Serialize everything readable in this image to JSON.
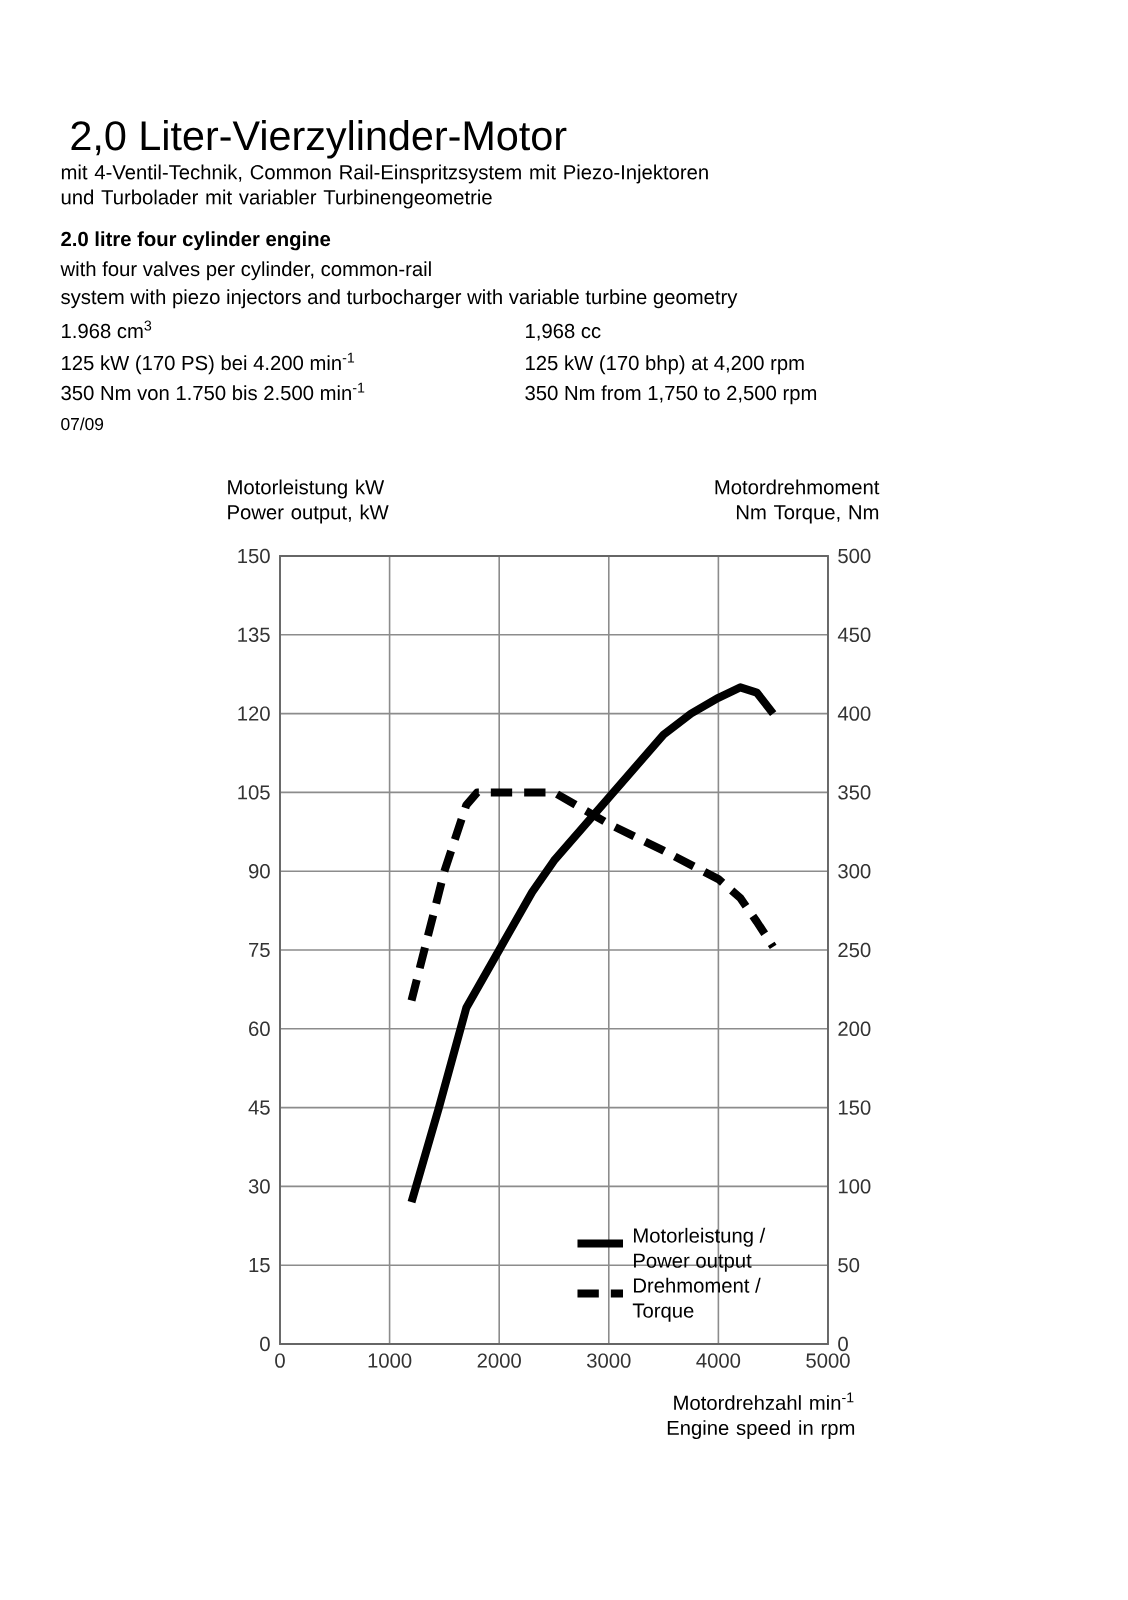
{
  "chart_data": {
    "type": "line",
    "title": "2,0 Liter-Vierzylinder-Motor",
    "subtitle": "mit 4-Ventil-Technik, Common Rail-Einspritzsystem mit Piezo-Injektoren und Turbolader mit variabler Turbinengeometrie",
    "annotations": [
      "2.0 litre four cylinder engine",
      "with four valves per cylinder, common-rail",
      "system with piezo injectors and turbocharger with variable turbine geometry",
      "1.968 cm$^{3}$",
      "125 kW (170 PS) bei 4.200 min$^{-1}$",
      "350 Nm von 1.750 bis 2.500 min$^{-1}$",
      "1,968 cc",
      "125 kW (170 bhp) at 4,200 rpm",
      "350 Nm from 1,750 to 2,500 rpm",
      "07/09"
    ],
    "xlabel": "Motordrehzahl min$^{-1}$ Engine speed in rpm",
    "ylabel": "Motorleistung kW Power output, kW",
    "y2label": "Motordrehmoment Nm Torque, Nm",
    "xlim": [
      0,
      5000
    ],
    "xticks": [
      0,
      1000,
      2000,
      3000,
      4000,
      5000
    ],
    "ylim": [
      0,
      150
    ],
    "yticks": [
      0,
      15,
      30,
      45,
      60,
      75,
      90,
      105,
      120,
      135,
      150
    ],
    "y2lim": [
      0,
      500
    ],
    "y2ticks": [
      0,
      50,
      100,
      150,
      200,
      250,
      300,
      350,
      400,
      450,
      500
    ],
    "grid": true,
    "legend": "bottom right",
    "marker": "none",
    "series": [
      {
        "name": "Motorleistung / Power output",
        "color": "#000000",
        "line_style": "solid",
        "x": [
          1200,
          1450,
          1700,
          2000,
          2300,
          2500,
          2750,
          3000,
          3250,
          3500,
          3750,
          4000,
          4200,
          4350,
          4500
        ],
        "values": [
          27,
          45,
          64,
          75,
          86,
          92,
          98,
          104,
          110,
          116,
          120,
          123,
          125,
          124,
          120
        ]
      },
      {
        "name": "Drehmoment / Torque",
        "color": "#000000",
        "line_style": "dashed",
        "axis": "y2",
        "x": [
          1200,
          1500,
          1700,
          1800,
          2500,
          3000,
          3500,
          4000,
          4200,
          4350,
          4500
        ],
        "values": [
          218,
          300,
          342,
          350,
          350,
          330,
          313,
          295,
          283,
          268,
          252
        ]
      }
    ]
  }
}
